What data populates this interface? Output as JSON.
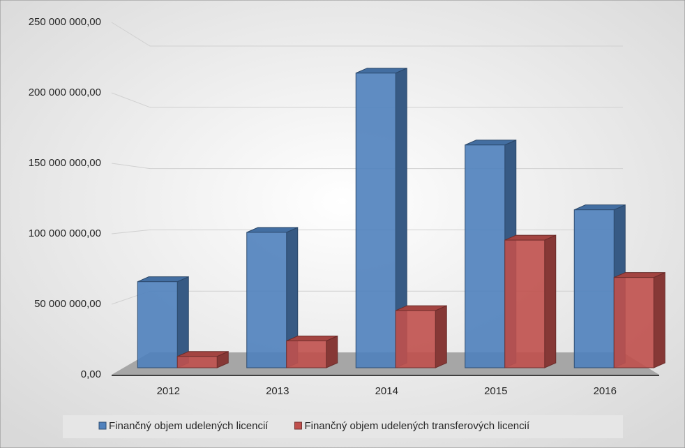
{
  "chart_data": {
    "type": "bar",
    "categories": [
      "2012",
      "2013",
      "2014",
      "2015",
      "2016"
    ],
    "series": [
      {
        "name": "Finančný objem udelených licencií",
        "color": "#4f81bd",
        "values": [
          66000000,
          101000000,
          214000000,
          163000000,
          117000000
        ]
      },
      {
        "name": "Finančný objem udelených transferových licencií",
        "color": "#c0504d",
        "values": [
          13000000,
          24000000,
          45500000,
          95500000,
          69000000
        ]
      }
    ],
    "ylim": [
      0,
      250000000
    ],
    "yticks": [
      {
        "value": 0,
        "label": "0,00"
      },
      {
        "value": 50000000,
        "label": "50 000 000,00"
      },
      {
        "value": 100000000,
        "label": "100 000 000,00"
      },
      {
        "value": 150000000,
        "label": "150 000 000,00"
      },
      {
        "value": 200000000,
        "label": "200 000 000,00"
      },
      {
        "value": 250000000,
        "label": "250 000 000,00"
      }
    ],
    "grid": true,
    "legend": "bottom"
  }
}
